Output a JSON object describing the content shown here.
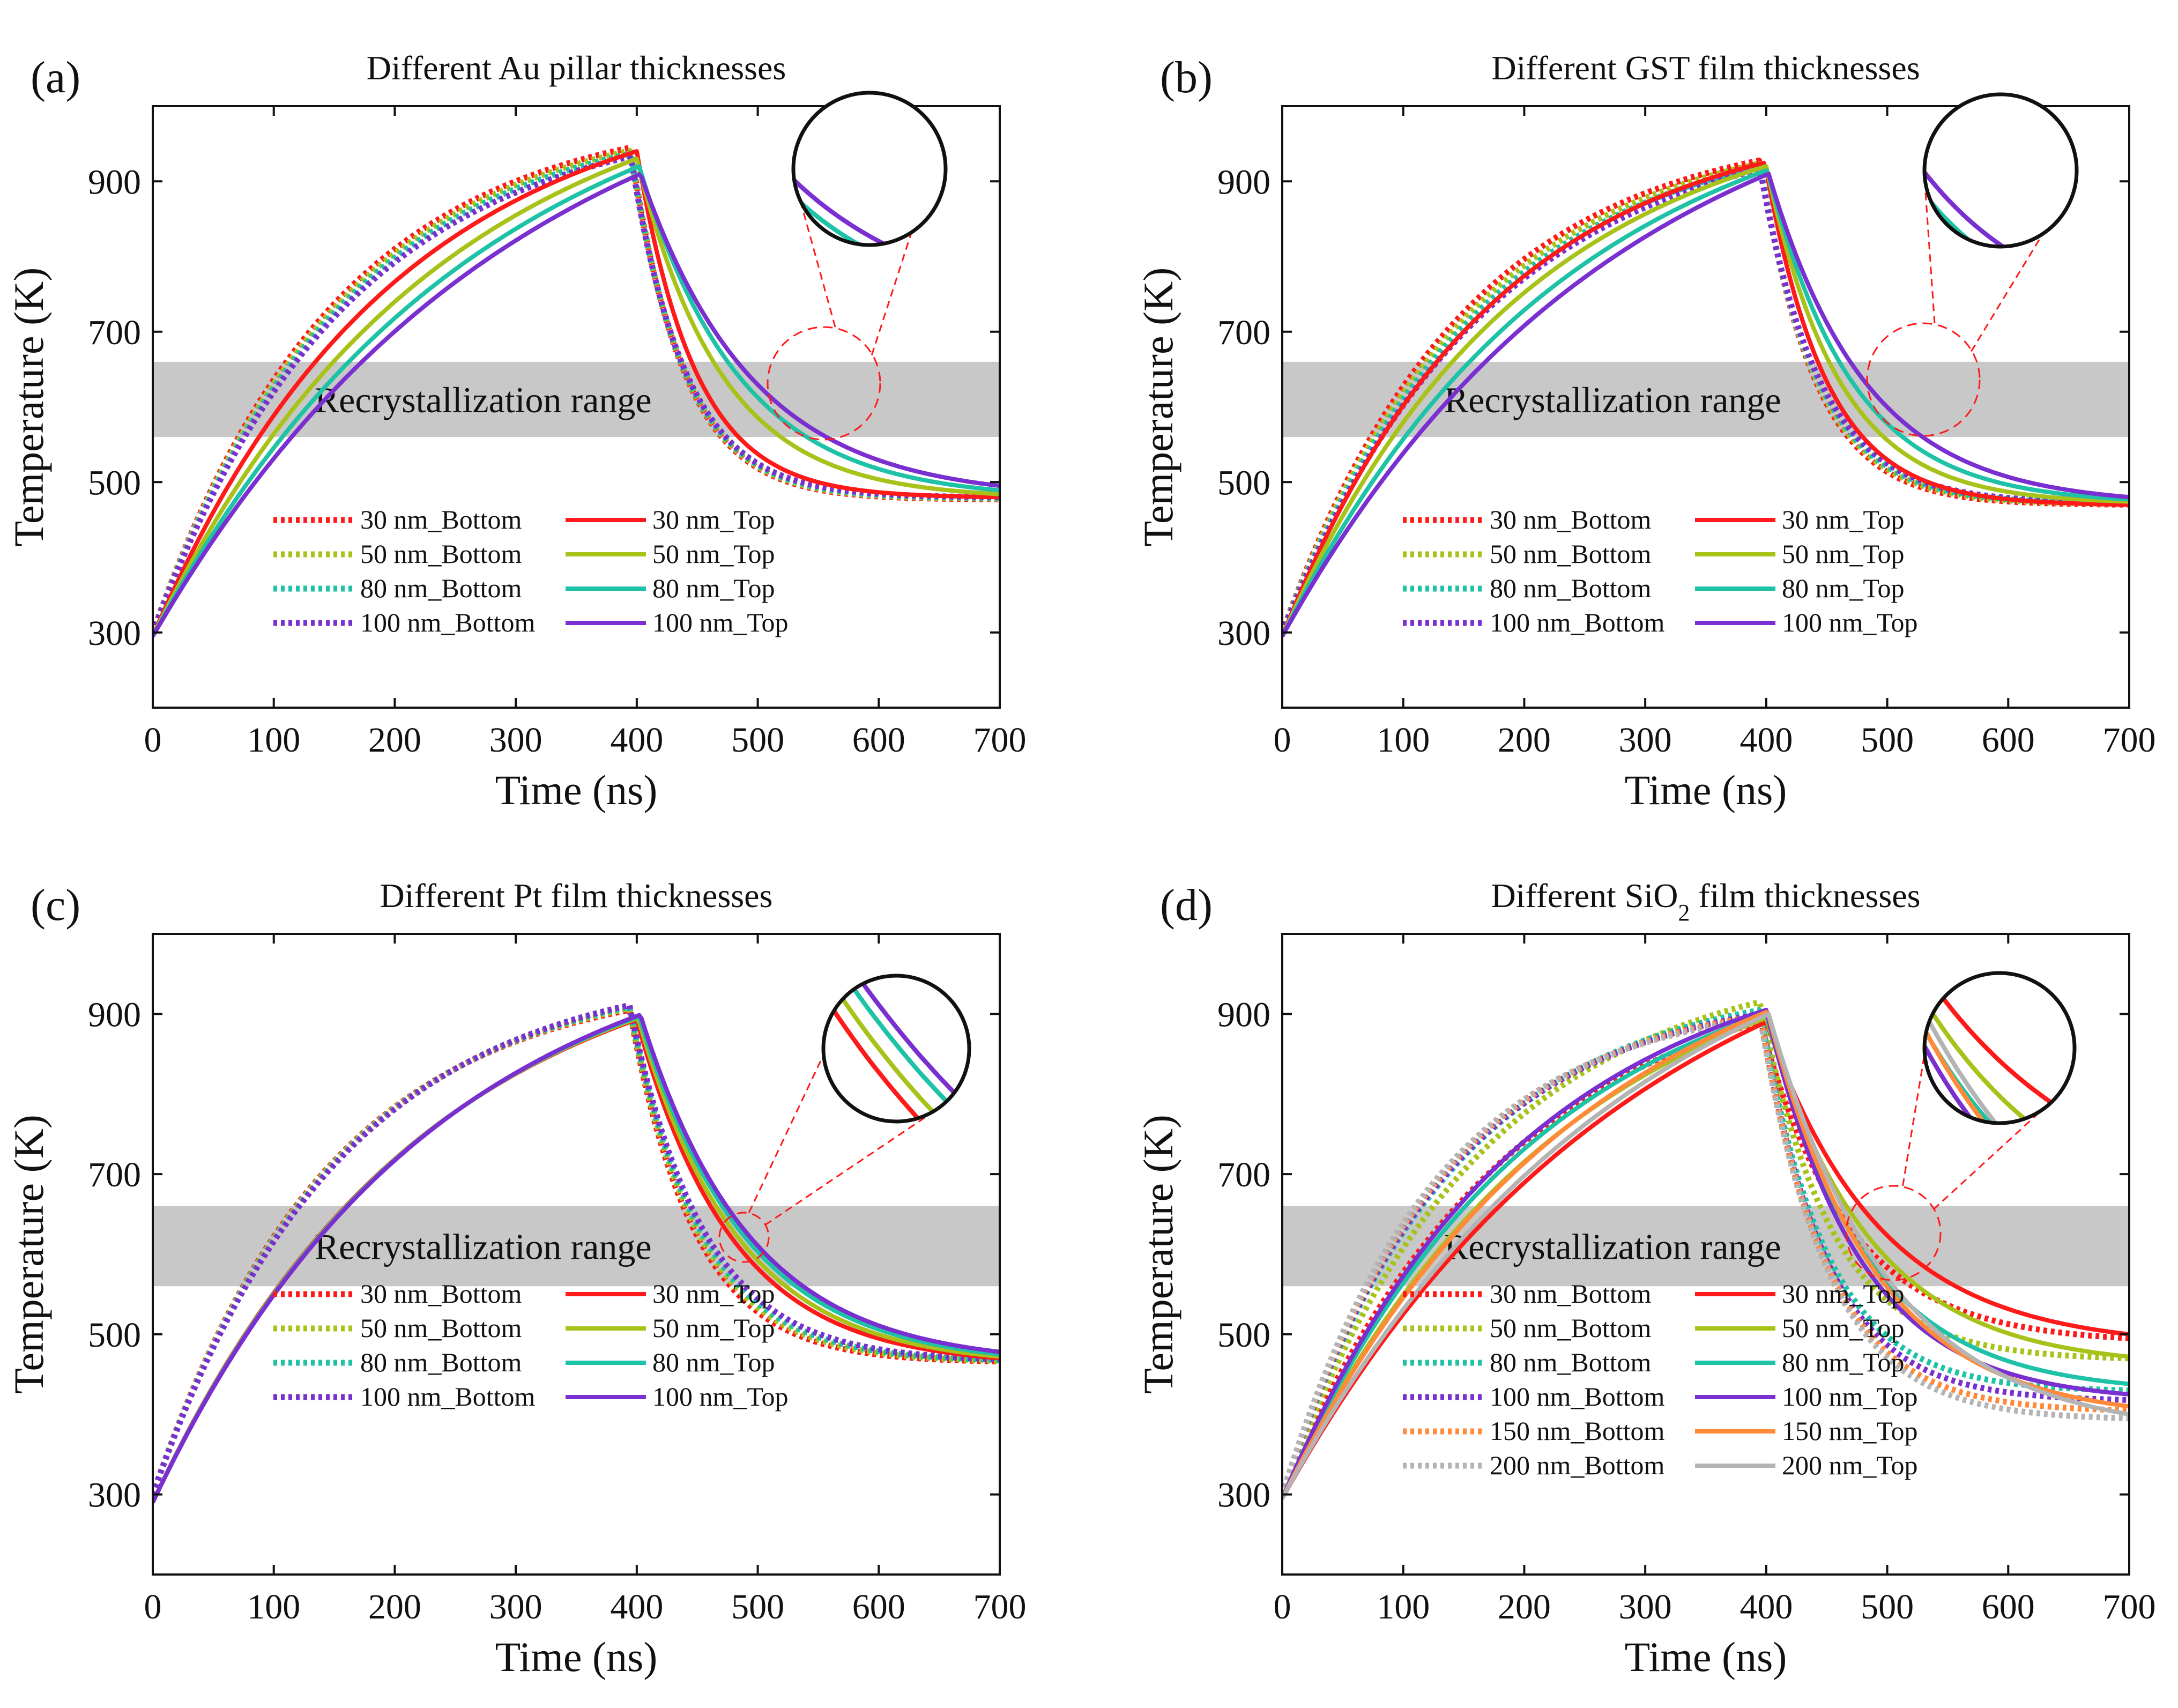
{
  "chart_data": [
    {
      "type": "line",
      "panel_label": "(a)",
      "title": "Different Au pillar thicknesses",
      "xlabel": "Time (ns)",
      "ylabel": "Temperature (K)",
      "xlim": [
        0,
        700
      ],
      "ylim": [
        200,
        1000
      ],
      "xticks": [
        0,
        100,
        200,
        300,
        400,
        500,
        600,
        700
      ],
      "yticks": [
        300,
        500,
        700,
        900
      ],
      "band": {
        "label": "Recrystallization range",
        "range": [
          560,
          660
        ]
      },
      "legend_location": "lower-left",
      "series": [
        {
          "name": "30 nm_Bottom",
          "style": "dotted",
          "color": "#ff1a1a",
          "start": 300,
          "peak": 945,
          "peak_time": 395,
          "end": 477,
          "rise_k": 2.6,
          "fall_k": 7.0
        },
        {
          "name": "50 nm_Bottom",
          "style": "dotted",
          "color": "#a8c21a",
          "start": 300,
          "peak": 941,
          "peak_time": 395,
          "end": 478,
          "rise_k": 2.55,
          "fall_k": 6.9
        },
        {
          "name": "80 nm_Bottom",
          "style": "dotted",
          "color": "#1ec2a6",
          "start": 300,
          "peak": 937,
          "peak_time": 395,
          "end": 479,
          "rise_k": 2.5,
          "fall_k": 6.8
        },
        {
          "name": "100 nm_Bottom",
          "style": "dotted",
          "color": "#7a2fd0",
          "start": 300,
          "peak": 933,
          "peak_time": 395,
          "end": 480,
          "rise_k": 2.45,
          "fall_k": 6.7
        },
        {
          "name": "30 nm_Top",
          "style": "solid",
          "color": "#ff1a1a",
          "start": 295,
          "peak": 940,
          "peak_time": 400,
          "end": 480,
          "rise_k": 2.0,
          "fall_k": 6.2
        },
        {
          "name": "50 nm_Top",
          "style": "solid",
          "color": "#a8c21a",
          "start": 295,
          "peak": 930,
          "peak_time": 400,
          "end": 484,
          "rise_k": 1.7,
          "fall_k": 4.3
        },
        {
          "name": "80 nm_Top",
          "style": "solid",
          "color": "#1ec2a6",
          "start": 295,
          "peak": 920,
          "peak_time": 402,
          "end": 489,
          "rise_k": 1.5,
          "fall_k": 3.6
        },
        {
          "name": "100 nm_Top",
          "style": "solid",
          "color": "#7a2fd0",
          "start": 295,
          "peak": 910,
          "peak_time": 403,
          "end": 495,
          "rise_k": 1.35,
          "fall_k": 3.2
        }
      ]
    },
    {
      "type": "line",
      "panel_label": "(b)",
      "title": "Different GST film thicknesses",
      "xlabel": "Time (ns)",
      "ylabel": "Temperature (K)",
      "xlim": [
        0,
        700
      ],
      "ylim": [
        200,
        1000
      ],
      "xticks": [
        0,
        100,
        200,
        300,
        400,
        500,
        600,
        700
      ],
      "yticks": [
        300,
        500,
        700,
        900
      ],
      "band": {
        "label": "Recrystallization range",
        "range": [
          560,
          660
        ]
      },
      "legend_location": "lower-left",
      "series": [
        {
          "name": "30 nm_Bottom",
          "style": "dotted",
          "color": "#ff1a1a",
          "start": 300,
          "peak": 928,
          "peak_time": 395,
          "end": 470,
          "rise_k": 2.6,
          "fall_k": 6.8
        },
        {
          "name": "50 nm_Bottom",
          "style": "dotted",
          "color": "#a8c21a",
          "start": 300,
          "peak": 924,
          "peak_time": 395,
          "end": 471,
          "rise_k": 2.5,
          "fall_k": 6.6
        },
        {
          "name": "80 nm_Bottom",
          "style": "dotted",
          "color": "#1ec2a6",
          "start": 300,
          "peak": 920,
          "peak_time": 395,
          "end": 472,
          "rise_k": 2.4,
          "fall_k": 6.4
        },
        {
          "name": "100 nm_Bottom",
          "style": "dotted",
          "color": "#7a2fd0",
          "start": 300,
          "peak": 916,
          "peak_time": 395,
          "end": 473,
          "rise_k": 2.3,
          "fall_k": 6.2
        },
        {
          "name": "30 nm_Top",
          "style": "solid",
          "color": "#ff1a1a",
          "start": 295,
          "peak": 925,
          "peak_time": 399,
          "end": 470,
          "rise_k": 2.3,
          "fall_k": 6.0
        },
        {
          "name": "50 nm_Top",
          "style": "solid",
          "color": "#a8c21a",
          "start": 295,
          "peak": 920,
          "peak_time": 400,
          "end": 474,
          "rise_k": 2.0,
          "fall_k": 5.0
        },
        {
          "name": "80 nm_Top",
          "style": "solid",
          "color": "#1ec2a6",
          "start": 295,
          "peak": 915,
          "peak_time": 401,
          "end": 477,
          "rise_k": 1.7,
          "fall_k": 4.3
        },
        {
          "name": "100 nm_Top",
          "style": "solid",
          "color": "#7a2fd0",
          "start": 295,
          "peak": 910,
          "peak_time": 402,
          "end": 480,
          "rise_k": 1.45,
          "fall_k": 3.7
        }
      ]
    },
    {
      "type": "line",
      "panel_label": "(c)",
      "title": "Different Pt film thicknesses",
      "xlabel": "Time (ns)",
      "ylabel": "Temperature (K)",
      "xlim": [
        0,
        700
      ],
      "ylim": [
        200,
        1000
      ],
      "xticks": [
        0,
        100,
        200,
        300,
        400,
        500,
        600,
        700
      ],
      "yticks": [
        300,
        500,
        700,
        900
      ],
      "band": {
        "label": "Recrystallization range",
        "range": [
          560,
          660
        ]
      },
      "legend_location": "lower-left",
      "series": [
        {
          "name": "30 nm_Bottom",
          "style": "dotted",
          "color": "#ff1a1a",
          "start": 300,
          "peak": 905,
          "peak_time": 394,
          "end": 466,
          "rise_k": 2.7,
          "fall_k": 5.6
        },
        {
          "name": "50 nm_Bottom",
          "style": "dotted",
          "color": "#a8c21a",
          "start": 300,
          "peak": 907,
          "peak_time": 394,
          "end": 467,
          "rise_k": 2.65,
          "fall_k": 5.4
        },
        {
          "name": "80 nm_Bottom",
          "style": "dotted",
          "color": "#1ec2a6",
          "start": 300,
          "peak": 909,
          "peak_time": 394,
          "end": 468,
          "rise_k": 2.6,
          "fall_k": 5.2
        },
        {
          "name": "100 nm_Bottom",
          "style": "dotted",
          "color": "#7a2fd0",
          "start": 300,
          "peak": 911,
          "peak_time": 394,
          "end": 469,
          "rise_k": 2.55,
          "fall_k": 5.0
        },
        {
          "name": "30 nm_Top",
          "style": "solid",
          "color": "#ff1a1a",
          "start": 290,
          "peak": 893,
          "peak_time": 400,
          "end": 470,
          "rise_k": 1.8,
          "fall_k": 3.8
        },
        {
          "name": "50 nm_Top",
          "style": "solid",
          "color": "#a8c21a",
          "start": 290,
          "peak": 895,
          "peak_time": 401,
          "end": 472,
          "rise_k": 1.78,
          "fall_k": 3.6
        },
        {
          "name": "80 nm_Top",
          "style": "solid",
          "color": "#1ec2a6",
          "start": 290,
          "peak": 897,
          "peak_time": 402,
          "end": 475,
          "rise_k": 1.76,
          "fall_k": 3.4
        },
        {
          "name": "100 nm_Top",
          "style": "solid",
          "color": "#7a2fd0",
          "start": 290,
          "peak": 899,
          "peak_time": 403,
          "end": 478,
          "rise_k": 1.74,
          "fall_k": 3.3
        }
      ]
    },
    {
      "type": "line",
      "panel_label": "(d)",
      "title_parts": [
        "Different SiO",
        "2",
        " film thicknesses"
      ],
      "xlabel": "Time (ns)",
      "ylabel": "Temperature (K)",
      "xlim": [
        0,
        700
      ],
      "ylim": [
        200,
        1000
      ],
      "xticks": [
        0,
        100,
        200,
        300,
        400,
        500,
        600,
        700
      ],
      "yticks": [
        300,
        500,
        700,
        900
      ],
      "band": {
        "label": "Recrystallization range",
        "range": [
          560,
          660
        ]
      },
      "legend_location": "lower-left",
      "series": [
        {
          "name": "30 nm_Bottom",
          "style": "dotted",
          "color": "#ff1a1a",
          "start": 300,
          "peak": 890,
          "peak_time": 395,
          "end": 495,
          "rise_k": 2.1,
          "fall_k": 4.2
        },
        {
          "name": "50 nm_Bottom",
          "style": "dotted",
          "color": "#a8c21a",
          "start": 300,
          "peak": 915,
          "peak_time": 395,
          "end": 470,
          "rise_k": 2.4,
          "fall_k": 5.2
        },
        {
          "name": "80 nm_Bottom",
          "style": "dotted",
          "color": "#1ec2a6",
          "start": 300,
          "peak": 905,
          "peak_time": 395,
          "end": 430,
          "rise_k": 2.8,
          "fall_k": 5.6
        },
        {
          "name": "100 nm_Bottom",
          "style": "dotted",
          "color": "#7a2fd0",
          "start": 300,
          "peak": 900,
          "peak_time": 395,
          "end": 418,
          "rise_k": 2.9,
          "fall_k": 5.6
        },
        {
          "name": "150 nm_Bottom",
          "style": "dotted",
          "color": "#ff8a3a",
          "start": 300,
          "peak": 898,
          "peak_time": 395,
          "end": 405,
          "rise_k": 3.0,
          "fall_k": 5.5
        },
        {
          "name": "200 nm_Bottom",
          "style": "dotted",
          "color": "#b4b4b4",
          "start": 300,
          "peak": 895,
          "peak_time": 395,
          "end": 395,
          "rise_k": 3.1,
          "fall_k": 5.4
        },
        {
          "name": "30 nm_Top",
          "style": "solid",
          "color": "#ff1a1a",
          "start": 295,
          "peak": 890,
          "peak_time": 400,
          "end": 500,
          "rise_k": 1.35,
          "fall_k": 3.2
        },
        {
          "name": "50 nm_Top",
          "style": "solid",
          "color": "#a8c21a",
          "start": 295,
          "peak": 895,
          "peak_time": 400,
          "end": 472,
          "rise_k": 1.7,
          "fall_k": 3.5
        },
        {
          "name": "80 nm_Top",
          "style": "solid",
          "color": "#1ec2a6",
          "start": 295,
          "peak": 900,
          "peak_time": 400,
          "end": 438,
          "rise_k": 1.9,
          "fall_k": 3.7
        },
        {
          "name": "100 nm_Top",
          "style": "solid",
          "color": "#7a2fd0",
          "start": 295,
          "peak": 905,
          "peak_time": 400,
          "end": 425,
          "rise_k": 2.0,
          "fall_k": 3.9
        },
        {
          "name": "150 nm_Top",
          "style": "solid",
          "color": "#ff8a3a",
          "start": 295,
          "peak": 903,
          "peak_time": 401,
          "end": 410,
          "rise_k": 1.6,
          "fall_k": 3.4
        },
        {
          "name": "200 nm_Top",
          "style": "solid",
          "color": "#b4b4b4",
          "start": 295,
          "peak": 900,
          "peak_time": 402,
          "end": 400,
          "rise_k": 1.4,
          "fall_k": 3.0
        }
      ]
    }
  ]
}
